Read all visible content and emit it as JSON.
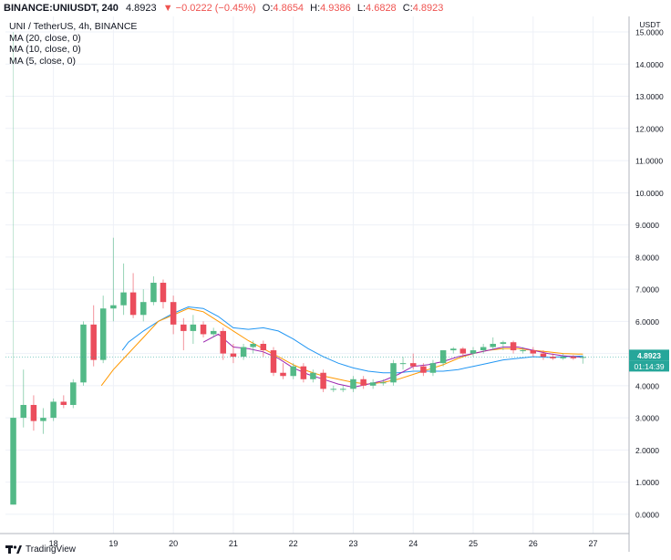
{
  "header": {
    "symbol": "BINANCE:UNIUSDT, 240",
    "last": "4.8923",
    "change": "▼ −0.0222 (−0.45%)",
    "o_label": "O:",
    "o": "4.8654",
    "h_label": "H:",
    "h": "4.9386",
    "l_label": "L:",
    "l": "4.6828",
    "c_label": "C:",
    "c": "4.8923"
  },
  "legend": {
    "title": "UNI / TetherUS, 4h, BINANCE",
    "ma20": "MA (20, close, 0)",
    "ma10": "MA (10, close, 0)",
    "ma5": "MA (5, close, 0)"
  },
  "footer": {
    "brand": "TradingView"
  },
  "colors": {
    "up": "#26a69a",
    "up_body": "#53b987",
    "down": "#eb4d5c",
    "ma20": "#2196f3",
    "ma10": "#ff9800",
    "ma5": "#9c27b0",
    "grid": "#f0f3fa",
    "price_label": "#26a69a"
  },
  "chart_data": {
    "type": "candlestick",
    "currency_label": "USDT",
    "price_label": "4.8923",
    "countdown_label": "01:14:39",
    "ylim": [
      -0.6,
      15.2
    ],
    "yticks": [
      0,
      1,
      2,
      3,
      4,
      5,
      6,
      7,
      8,
      9,
      10,
      11,
      12,
      13,
      14,
      15
    ],
    "ytick_labels": [
      "0.0000",
      "1.0000",
      "2.0000",
      "3.0000",
      "4.0000",
      "5.0000",
      "6.0000",
      "7.0000",
      "8.0000",
      "9.0000",
      "10.0000",
      "11.0000",
      "12.0000",
      "13.0000",
      "14.0000",
      "15.0000"
    ],
    "xlim": [
      17.2,
      27.6
    ],
    "xticks": [
      18,
      19,
      20,
      21,
      22,
      23,
      24,
      25,
      26,
      27
    ],
    "xtick_labels": [
      "18",
      "19",
      "20",
      "21",
      "22",
      "23",
      "24",
      "25",
      "26",
      "27"
    ],
    "candles": [
      {
        "t": 17.33,
        "o": 0.3,
        "h": 15.0,
        "l": 0.3,
        "c": 3.0
      },
      {
        "t": 17.5,
        "o": 3.0,
        "h": 4.5,
        "l": 2.7,
        "c": 3.4
      },
      {
        "t": 17.67,
        "o": 3.4,
        "h": 3.7,
        "l": 2.6,
        "c": 2.9
      },
      {
        "t": 17.83,
        "o": 2.9,
        "h": 3.3,
        "l": 2.5,
        "c": 3.0
      },
      {
        "t": 18.0,
        "o": 3.0,
        "h": 3.6,
        "l": 2.9,
        "c": 3.5
      },
      {
        "t": 18.17,
        "o": 3.5,
        "h": 3.7,
        "l": 3.3,
        "c": 3.4
      },
      {
        "t": 18.33,
        "o": 3.4,
        "h": 4.2,
        "l": 3.3,
        "c": 4.1
      },
      {
        "t": 18.5,
        "o": 4.1,
        "h": 6.0,
        "l": 4.0,
        "c": 5.9
      },
      {
        "t": 18.67,
        "o": 5.9,
        "h": 6.5,
        "l": 4.6,
        "c": 4.8
      },
      {
        "t": 18.83,
        "o": 4.8,
        "h": 6.8,
        "l": 4.7,
        "c": 6.4
      },
      {
        "t": 19.0,
        "o": 6.4,
        "h": 8.6,
        "l": 6.0,
        "c": 6.5
      },
      {
        "t": 19.17,
        "o": 6.5,
        "h": 7.8,
        "l": 6.2,
        "c": 6.9
      },
      {
        "t": 19.33,
        "o": 6.9,
        "h": 7.5,
        "l": 6.1,
        "c": 6.2
      },
      {
        "t": 19.5,
        "o": 6.2,
        "h": 7.0,
        "l": 6.0,
        "c": 6.6
      },
      {
        "t": 19.67,
        "o": 6.6,
        "h": 7.4,
        "l": 6.5,
        "c": 7.2
      },
      {
        "t": 19.83,
        "o": 7.2,
        "h": 7.3,
        "l": 6.4,
        "c": 6.6
      },
      {
        "t": 20.0,
        "o": 6.6,
        "h": 6.8,
        "l": 5.6,
        "c": 5.9
      },
      {
        "t": 20.17,
        "o": 5.9,
        "h": 6.1,
        "l": 5.1,
        "c": 5.7
      },
      {
        "t": 20.33,
        "o": 5.7,
        "h": 6.2,
        "l": 5.3,
        "c": 5.9
      },
      {
        "t": 20.5,
        "o": 5.9,
        "h": 6.0,
        "l": 5.5,
        "c": 5.6
      },
      {
        "t": 20.67,
        "o": 5.6,
        "h": 5.8,
        "l": 5.5,
        "c": 5.7
      },
      {
        "t": 20.83,
        "o": 5.7,
        "h": 5.8,
        "l": 4.8,
        "c": 5.0
      },
      {
        "t": 21.0,
        "o": 5.0,
        "h": 5.3,
        "l": 4.7,
        "c": 4.9
      },
      {
        "t": 21.17,
        "o": 4.9,
        "h": 5.3,
        "l": 4.8,
        "c": 5.2
      },
      {
        "t": 21.33,
        "o": 5.2,
        "h": 5.4,
        "l": 5.0,
        "c": 5.3
      },
      {
        "t": 21.5,
        "o": 5.3,
        "h": 5.4,
        "l": 4.9,
        "c": 5.1
      },
      {
        "t": 21.67,
        "o": 5.1,
        "h": 5.2,
        "l": 4.3,
        "c": 4.4
      },
      {
        "t": 21.83,
        "o": 4.4,
        "h": 4.7,
        "l": 4.2,
        "c": 4.3
      },
      {
        "t": 22.0,
        "o": 4.3,
        "h": 4.7,
        "l": 4.2,
        "c": 4.6
      },
      {
        "t": 22.17,
        "o": 4.6,
        "h": 4.7,
        "l": 4.1,
        "c": 4.2
      },
      {
        "t": 22.33,
        "o": 4.2,
        "h": 4.5,
        "l": 4.1,
        "c": 4.4
      },
      {
        "t": 22.5,
        "o": 4.4,
        "h": 4.5,
        "l": 3.8,
        "c": 3.9
      },
      {
        "t": 22.67,
        "o": 3.9,
        "h": 4.0,
        "l": 3.8,
        "c": 3.9
      },
      {
        "t": 22.83,
        "o": 3.9,
        "h": 4.0,
        "l": 3.8,
        "c": 3.9
      },
      {
        "t": 23.0,
        "o": 3.9,
        "h": 4.3,
        "l": 3.8,
        "c": 4.2
      },
      {
        "t": 23.17,
        "o": 4.2,
        "h": 4.3,
        "l": 3.9,
        "c": 4.0
      },
      {
        "t": 23.33,
        "o": 4.0,
        "h": 4.2,
        "l": 3.9,
        "c": 4.1
      },
      {
        "t": 23.5,
        "o": 4.1,
        "h": 4.2,
        "l": 4.0,
        "c": 4.1
      },
      {
        "t": 23.67,
        "o": 4.1,
        "h": 4.8,
        "l": 4.0,
        "c": 4.7
      },
      {
        "t": 23.83,
        "o": 4.7,
        "h": 4.9,
        "l": 4.5,
        "c": 4.7
      },
      {
        "t": 24.0,
        "o": 4.7,
        "h": 5.0,
        "l": 4.5,
        "c": 4.6
      },
      {
        "t": 24.17,
        "o": 4.6,
        "h": 4.7,
        "l": 4.3,
        "c": 4.4
      },
      {
        "t": 24.33,
        "o": 4.4,
        "h": 4.8,
        "l": 4.3,
        "c": 4.7
      },
      {
        "t": 24.5,
        "o": 4.7,
        "h": 5.1,
        "l": 4.6,
        "c": 5.1
      },
      {
        "t": 24.67,
        "o": 5.1,
        "h": 5.2,
        "l": 5.0,
        "c": 5.15
      },
      {
        "t": 24.83,
        "o": 5.15,
        "h": 5.2,
        "l": 4.9,
        "c": 5.0
      },
      {
        "t": 25.0,
        "o": 5.0,
        "h": 5.2,
        "l": 4.9,
        "c": 5.1
      },
      {
        "t": 25.17,
        "o": 5.1,
        "h": 5.3,
        "l": 5.0,
        "c": 5.2
      },
      {
        "t": 25.33,
        "o": 5.2,
        "h": 5.5,
        "l": 5.1,
        "c": 5.3
      },
      {
        "t": 25.5,
        "o": 5.3,
        "h": 5.4,
        "l": 5.1,
        "c": 5.35
      },
      {
        "t": 25.67,
        "o": 5.35,
        "h": 5.4,
        "l": 5.0,
        "c": 5.1
      },
      {
        "t": 25.83,
        "o": 5.1,
        "h": 5.2,
        "l": 5.0,
        "c": 5.1
      },
      {
        "t": 26.0,
        "o": 5.1,
        "h": 5.2,
        "l": 4.9,
        "c": 5.0
      },
      {
        "t": 26.17,
        "o": 5.0,
        "h": 5.1,
        "l": 4.8,
        "c": 4.9
      },
      {
        "t": 26.33,
        "o": 4.9,
        "h": 5.0,
        "l": 4.8,
        "c": 4.85
      },
      {
        "t": 26.5,
        "o": 4.85,
        "h": 5.0,
        "l": 4.8,
        "c": 4.9
      },
      {
        "t": 26.67,
        "o": 4.9,
        "h": 4.95,
        "l": 4.8,
        "c": 4.85
      },
      {
        "t": 26.83,
        "o": 4.8654,
        "h": 4.9386,
        "l": 4.6828,
        "c": 4.8923
      }
    ],
    "ma20": [
      [
        19.15,
        5.1
      ],
      [
        19.25,
        5.35
      ],
      [
        19.5,
        5.7
      ],
      [
        19.75,
        6.0
      ],
      [
        20.0,
        6.25
      ],
      [
        20.25,
        6.45
      ],
      [
        20.5,
        6.4
      ],
      [
        20.75,
        6.15
      ],
      [
        21.0,
        5.8
      ],
      [
        21.25,
        5.75
      ],
      [
        21.5,
        5.8
      ],
      [
        21.75,
        5.7
      ],
      [
        22.0,
        5.45
      ],
      [
        22.25,
        5.15
      ],
      [
        22.5,
        4.9
      ],
      [
        22.75,
        4.7
      ],
      [
        23.0,
        4.55
      ],
      [
        23.25,
        4.45
      ],
      [
        23.5,
        4.4
      ],
      [
        23.75,
        4.4
      ],
      [
        24.0,
        4.45
      ],
      [
        24.25,
        4.45
      ],
      [
        24.5,
        4.45
      ],
      [
        24.75,
        4.5
      ],
      [
        25.0,
        4.6
      ],
      [
        25.25,
        4.7
      ],
      [
        25.5,
        4.8
      ],
      [
        25.75,
        4.85
      ],
      [
        26.0,
        4.9
      ],
      [
        26.25,
        4.88
      ],
      [
        26.5,
        4.9
      ],
      [
        26.83,
        4.92
      ]
    ],
    "ma10": [
      [
        18.8,
        4.0
      ],
      [
        19.0,
        4.5
      ],
      [
        19.25,
        5.0
      ],
      [
        19.5,
        5.5
      ],
      [
        19.75,
        6.0
      ],
      [
        20.0,
        6.2
      ],
      [
        20.25,
        6.4
      ],
      [
        20.5,
        6.3
      ],
      [
        20.75,
        6.0
      ],
      [
        21.0,
        5.7
      ],
      [
        21.25,
        5.4
      ],
      [
        21.5,
        5.15
      ],
      [
        21.75,
        4.9
      ],
      [
        22.0,
        4.65
      ],
      [
        22.25,
        4.45
      ],
      [
        22.5,
        4.3
      ],
      [
        22.75,
        4.2
      ],
      [
        23.0,
        4.1
      ],
      [
        23.25,
        4.05
      ],
      [
        23.5,
        4.1
      ],
      [
        23.75,
        4.2
      ],
      [
        24.0,
        4.35
      ],
      [
        24.25,
        4.5
      ],
      [
        24.5,
        4.65
      ],
      [
        24.75,
        4.85
      ],
      [
        25.0,
        5.0
      ],
      [
        25.25,
        5.1
      ],
      [
        25.5,
        5.15
      ],
      [
        25.75,
        5.15
      ],
      [
        26.0,
        5.1
      ],
      [
        26.25,
        5.05
      ],
      [
        26.5,
        5.0
      ],
      [
        26.83,
        4.98
      ]
    ],
    "ma5": [
      [
        20.5,
        5.35
      ],
      [
        20.75,
        5.6
      ],
      [
        21.0,
        5.2
      ],
      [
        21.25,
        5.15
      ],
      [
        21.5,
        5.05
      ],
      [
        21.75,
        4.85
      ],
      [
        22.0,
        4.55
      ],
      [
        22.25,
        4.35
      ],
      [
        22.5,
        4.2
      ],
      [
        22.75,
        4.05
      ],
      [
        23.0,
        3.95
      ],
      [
        23.25,
        4.05
      ],
      [
        23.5,
        4.15
      ],
      [
        23.75,
        4.35
      ],
      [
        24.0,
        4.6
      ],
      [
        24.25,
        4.65
      ],
      [
        24.5,
        4.75
      ],
      [
        24.75,
        4.9
      ],
      [
        25.0,
        5.0
      ],
      [
        25.25,
        5.1
      ],
      [
        25.5,
        5.2
      ],
      [
        25.75,
        5.2
      ],
      [
        26.0,
        5.1
      ],
      [
        26.25,
        5.0
      ],
      [
        26.5,
        4.93
      ],
      [
        26.83,
        4.88
      ]
    ]
  }
}
